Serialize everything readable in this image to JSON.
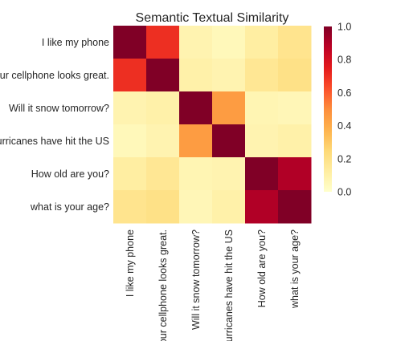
{
  "chart_data": {
    "type": "heatmap",
    "title": "Semantic Textual Similarity",
    "row_labels": [
      "I like my phone",
      "Your cellphone looks great.",
      "Will it snow tomorrow?",
      "Hurricanes have hit the US",
      "How old are you?",
      "what is your age?"
    ],
    "col_labels": [
      "I like my phone",
      "Your cellphone looks great.",
      "Will it snow tomorrow?",
      "Hurricanes have hit the US",
      "How old are you?",
      "what is your age?"
    ],
    "values": [
      [
        1.0,
        0.7,
        0.08,
        0.05,
        0.12,
        0.18
      ],
      [
        0.7,
        1.0,
        0.1,
        0.08,
        0.16,
        0.2
      ],
      [
        0.08,
        0.1,
        1.0,
        0.45,
        0.07,
        0.06
      ],
      [
        0.05,
        0.08,
        0.45,
        1.0,
        0.08,
        0.1
      ],
      [
        0.12,
        0.16,
        0.07,
        0.08,
        1.0,
        0.9
      ],
      [
        0.18,
        0.2,
        0.06,
        0.1,
        0.9,
        1.0
      ]
    ],
    "vmin": 0.0,
    "vmax": 1.0,
    "colormap": "YlOrRd",
    "colorbar_ticks": [
      "0.0",
      "0.2",
      "0.4",
      "0.6",
      "0.8",
      "1.0"
    ],
    "grid": false
  }
}
